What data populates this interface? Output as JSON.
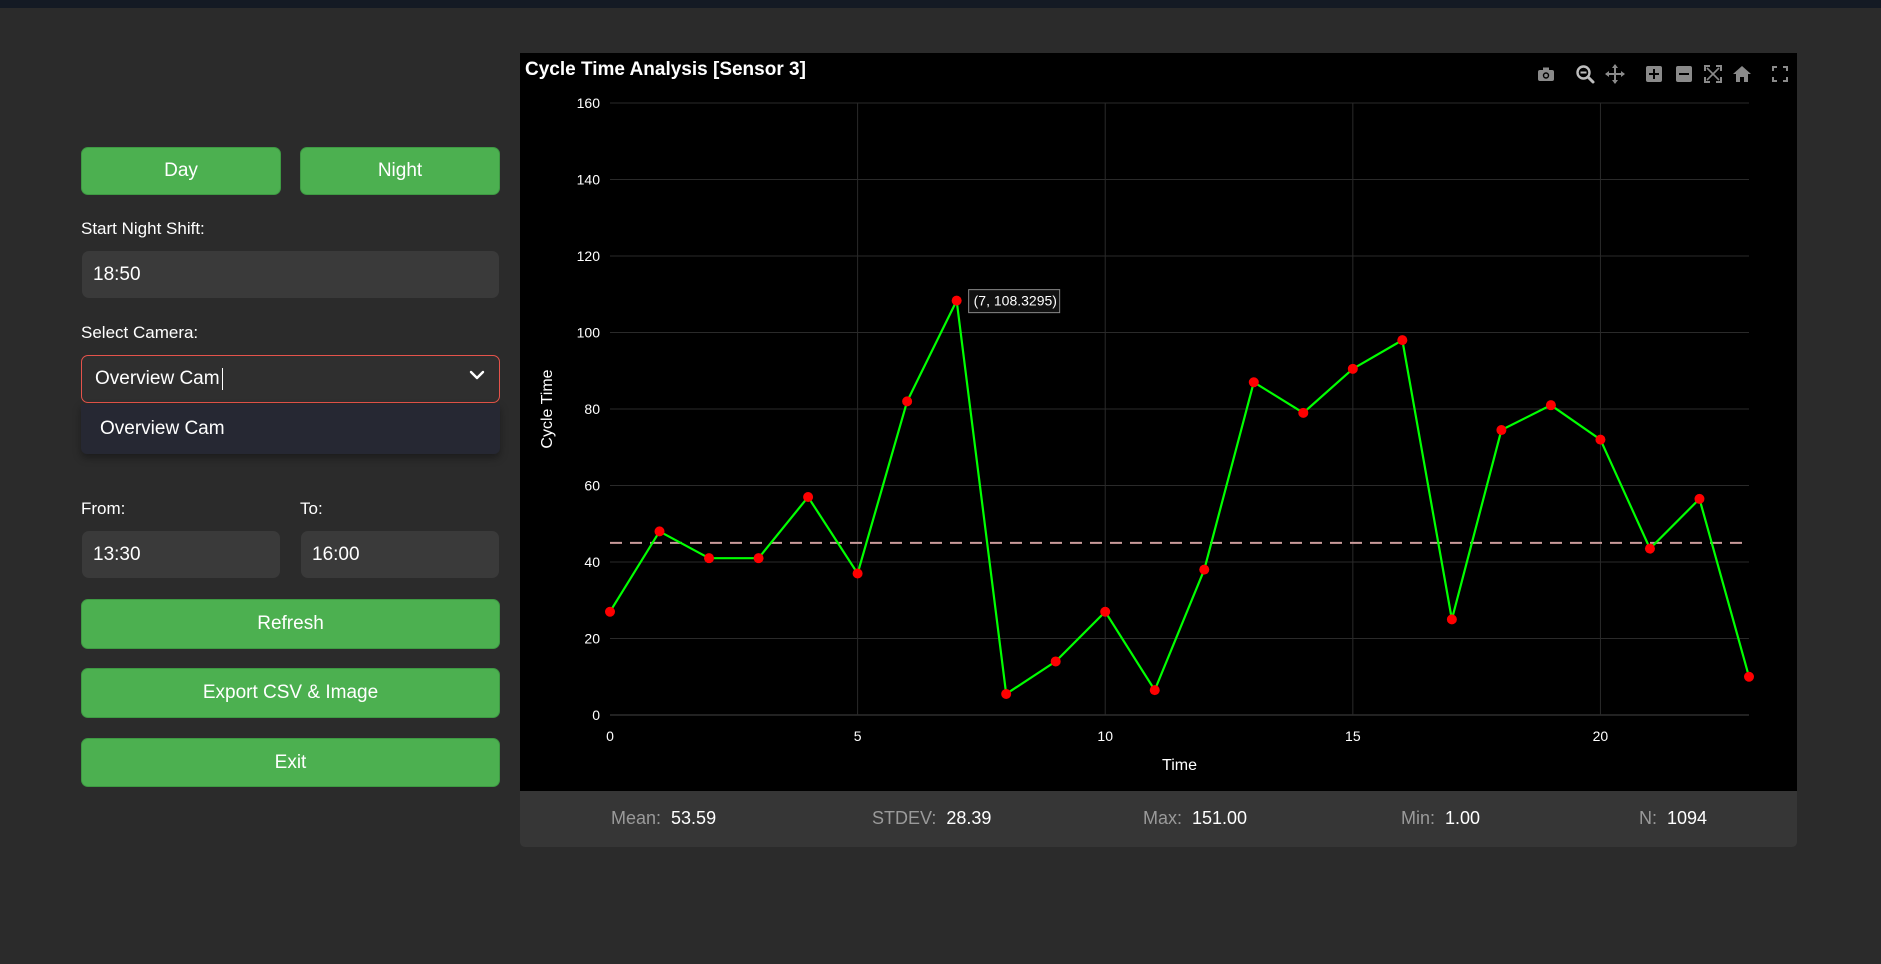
{
  "controls": {
    "day_label": "Day",
    "night_label": "Night",
    "start_night_label": "Start Night Shift:",
    "start_night_value": "18:50",
    "camera_label": "Select Camera:",
    "camera_value": "Overview Cam",
    "camera_options": [
      "Overview Cam"
    ],
    "from_label": "From:",
    "from_value": "13:30",
    "to_label": "To:",
    "to_value": "16:00",
    "refresh_label": "Refresh",
    "export_label": "Export CSV & Image",
    "exit_label": "Exit"
  },
  "chart_title": "Cycle Time Analysis [Sensor 3]",
  "modebar_icons": [
    "camera-icon",
    "zoom-icon",
    "pan-icon",
    "zoom-in-icon",
    "zoom-out-icon",
    "autoscale-icon",
    "home-icon",
    "fullscreen-icon"
  ],
  "chart_data": {
    "type": "line",
    "title": "Cycle Time Analysis [Sensor 3]",
    "xlabel": "Time",
    "ylabel": "Cycle Time",
    "xlim": [
      0,
      23
    ],
    "ylim": [
      0,
      160
    ],
    "xticks": [
      0,
      5,
      10,
      15,
      20
    ],
    "yticks": [
      0,
      20,
      40,
      60,
      80,
      100,
      120,
      140,
      160
    ],
    "grid": true,
    "x": [
      0,
      1,
      2,
      3,
      4,
      5,
      6,
      7,
      8,
      9,
      10,
      11,
      12,
      13,
      14,
      15,
      16,
      17,
      18,
      19,
      20,
      21,
      22,
      23
    ],
    "y": [
      27,
      48,
      41,
      41,
      57,
      37,
      82,
      108.3295,
      5.5,
      14,
      27,
      6.5,
      38,
      87,
      79,
      90.5,
      98,
      25,
      74.5,
      81,
      72,
      43.5,
      56.5,
      10
    ],
    "reference_line": 45,
    "line_color": "#00ff00",
    "marker_color": "#ff0000",
    "reference_color": "#c99a9a",
    "hover_label": "(7, 108.3295)"
  },
  "stats": {
    "mean_label": "Mean:",
    "mean_value": "53.59",
    "stdev_label": "STDEV:",
    "stdev_value": "28.39",
    "max_label": "Max:",
    "max_value": "151.00",
    "min_label": "Min:",
    "min_value": "1.00",
    "n_label": "N:",
    "n_value": "1094"
  }
}
